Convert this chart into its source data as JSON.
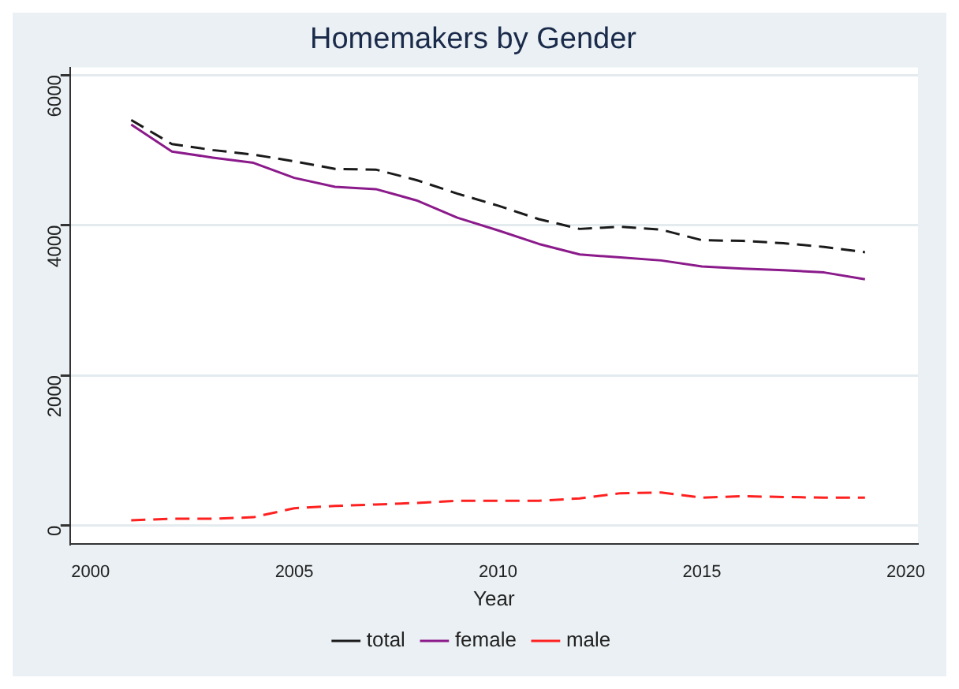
{
  "chart_data": {
    "type": "line",
    "title": "Homemakers by Gender",
    "xlabel": "Year",
    "x": [
      2001,
      2002,
      2003,
      2004,
      2005,
      2006,
      2007,
      2008,
      2009,
      2010,
      2011,
      2012,
      2013,
      2014,
      2015,
      2016,
      2017,
      2018,
      2019
    ],
    "series": [
      {
        "name": "total",
        "color": "#1a1a1a",
        "line_style": "dashed",
        "values": [
          5400,
          5080,
          5000,
          4940,
          4850,
          4750,
          4740,
          4600,
          4420,
          4260,
          4080,
          3950,
          3980,
          3940,
          3800,
          3790,
          3760,
          3710,
          3640
        ]
      },
      {
        "name": "female",
        "color": "#8b1a8b",
        "line_style": "solid",
        "values": [
          5340,
          4980,
          4900,
          4830,
          4630,
          4510,
          4480,
          4330,
          4100,
          3930,
          3750,
          3610,
          3570,
          3530,
          3450,
          3420,
          3400,
          3370,
          3280
        ]
      },
      {
        "name": "male",
        "color": "#ff2020",
        "line_style": "dashed",
        "values": [
          70,
          90,
          90,
          110,
          230,
          260,
          280,
          300,
          330,
          330,
          330,
          360,
          430,
          440,
          370,
          390,
          380,
          370,
          370
        ]
      }
    ],
    "xlim": [
      1999.5,
      2020.3
    ],
    "xticks": [
      2000,
      2005,
      2010,
      2015,
      2020
    ],
    "ylim": [
      -250,
      6100
    ],
    "yticks": [
      0,
      2000,
      4000,
      6000
    ],
    "grid": "y",
    "legend": "bottom",
    "marker": "none"
  }
}
